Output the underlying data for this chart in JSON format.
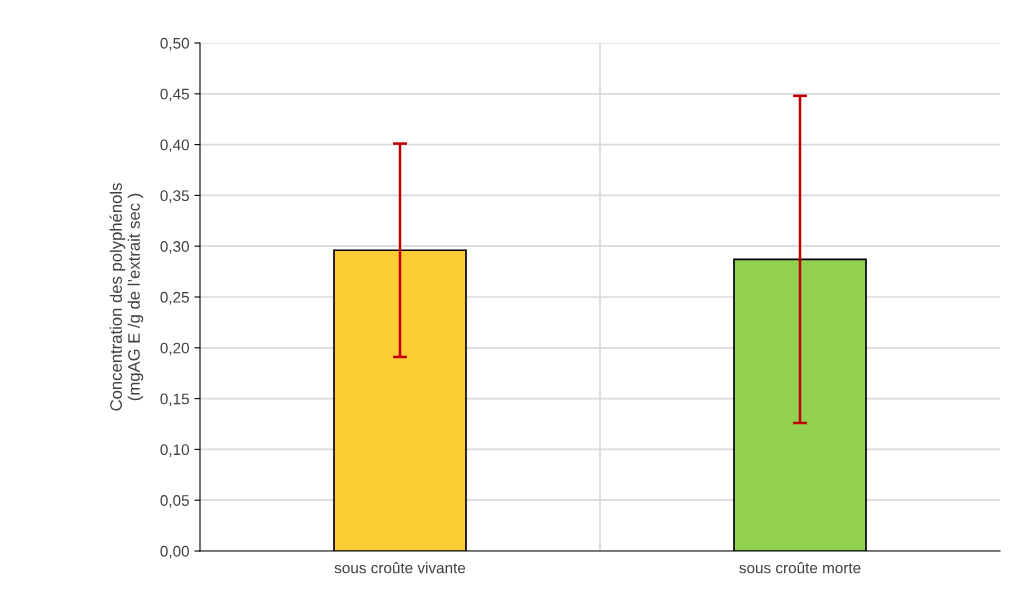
{
  "chart_data": {
    "type": "bar",
    "ylabel": "Concentration des polyphénols\n(mgAG E /g de l’extrait sec )",
    "categories": [
      "sous croûte vivante",
      "sous croûte morte"
    ],
    "values": [
      0.296,
      0.287
    ],
    "colors": [
      "#fdcd36",
      "#92d050"
    ],
    "errors": [
      0.105,
      0.161
    ],
    "ylim": [
      0,
      0.5
    ],
    "yticks": [
      {
        "value": 0,
        "label": "0,00"
      },
      {
        "value": 0.05,
        "label": "0,05"
      },
      {
        "value": 0.1,
        "label": "0,10"
      },
      {
        "value": 0.15,
        "label": "0,15"
      },
      {
        "value": 0.2,
        "label": "0,20"
      },
      {
        "value": 0.25,
        "label": "0,25"
      },
      {
        "value": 0.3,
        "label": "0,30"
      },
      {
        "value": 0.35,
        "label": "0,35"
      },
      {
        "value": 0.4,
        "label": "0,40"
      },
      {
        "value": 0.45,
        "label": "0,45"
      },
      {
        "value": 0.5,
        "label": "0,50"
      }
    ],
    "grid": true
  }
}
